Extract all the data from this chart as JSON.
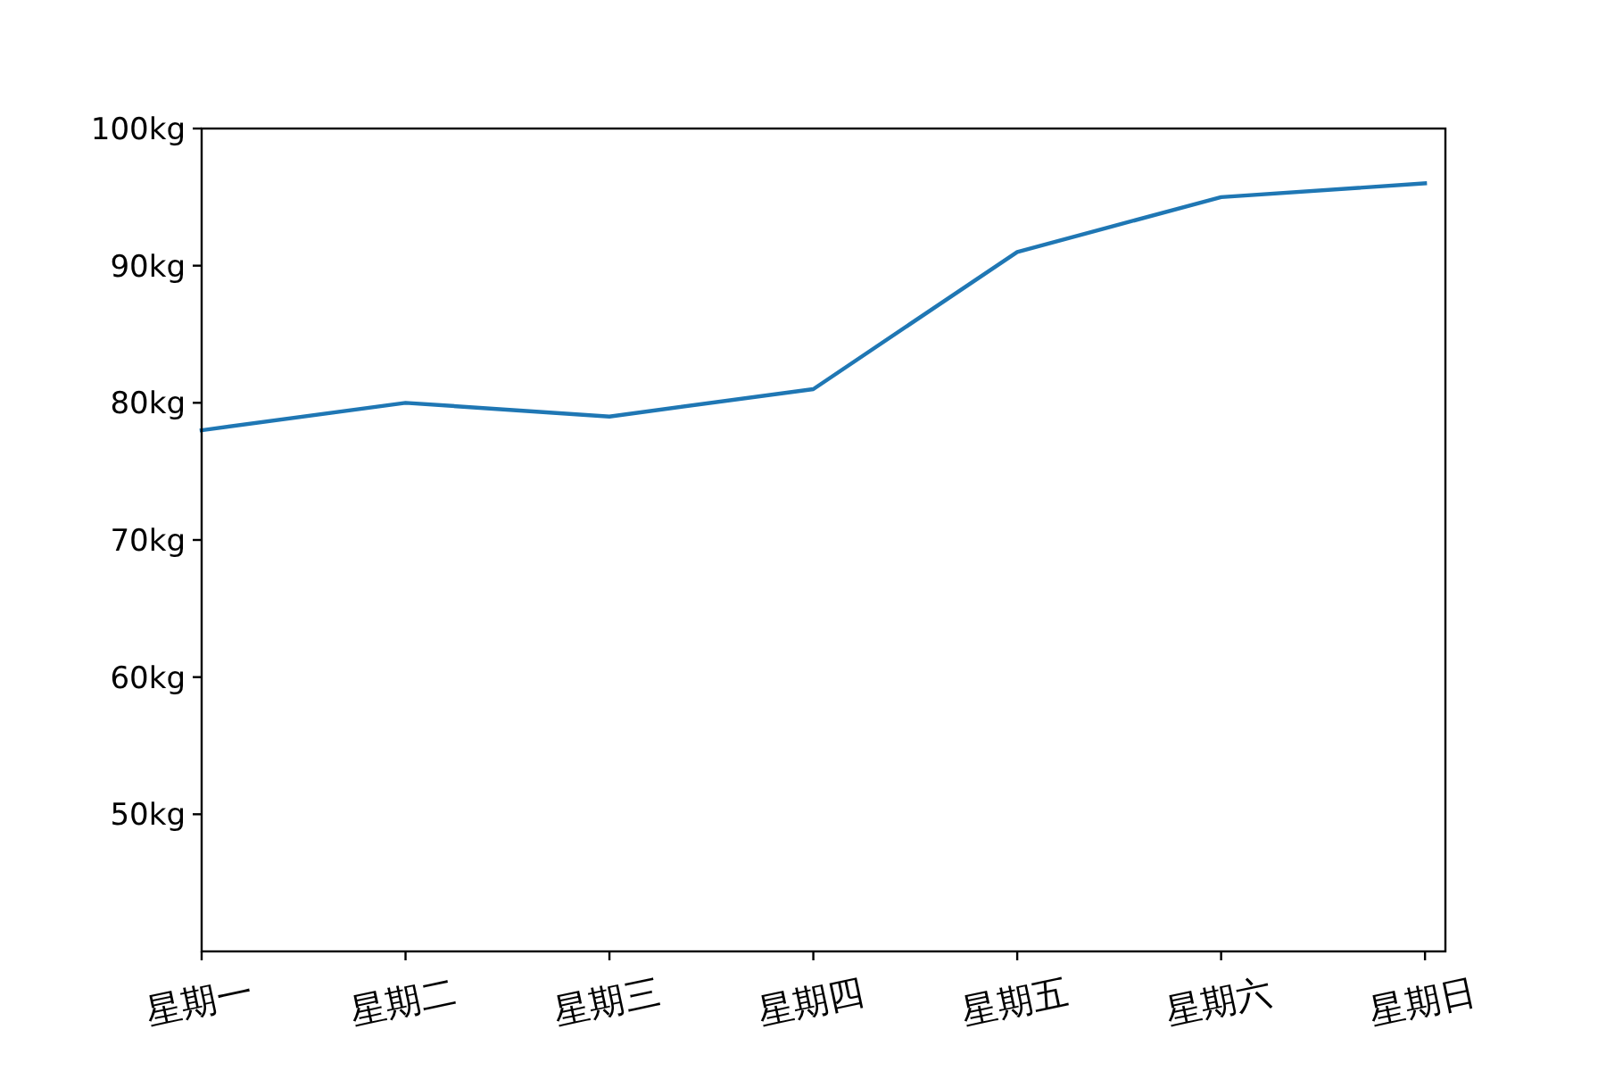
{
  "chart_data": {
    "type": "line",
    "categories": [
      "星期一",
      "星期二",
      "星期三",
      "星期四",
      "星期五",
      "星期六",
      "星期日"
    ],
    "series": [
      {
        "color": "#1f77b4",
        "values": [
          78,
          80,
          79,
          81,
          91,
          95,
          96
        ]
      }
    ],
    "ylim": [
      40,
      100
    ],
    "yticks": [
      {
        "value": 50,
        "label": "50kg"
      },
      {
        "value": 60,
        "label": "60kg"
      },
      {
        "value": 70,
        "label": "70kg"
      },
      {
        "value": 80,
        "label": "80kg"
      },
      {
        "value": 90,
        "label": "90kg"
      },
      {
        "value": 100,
        "label": "100kg"
      }
    ],
    "grid": false,
    "marker": "none",
    "line_style": "solid"
  }
}
